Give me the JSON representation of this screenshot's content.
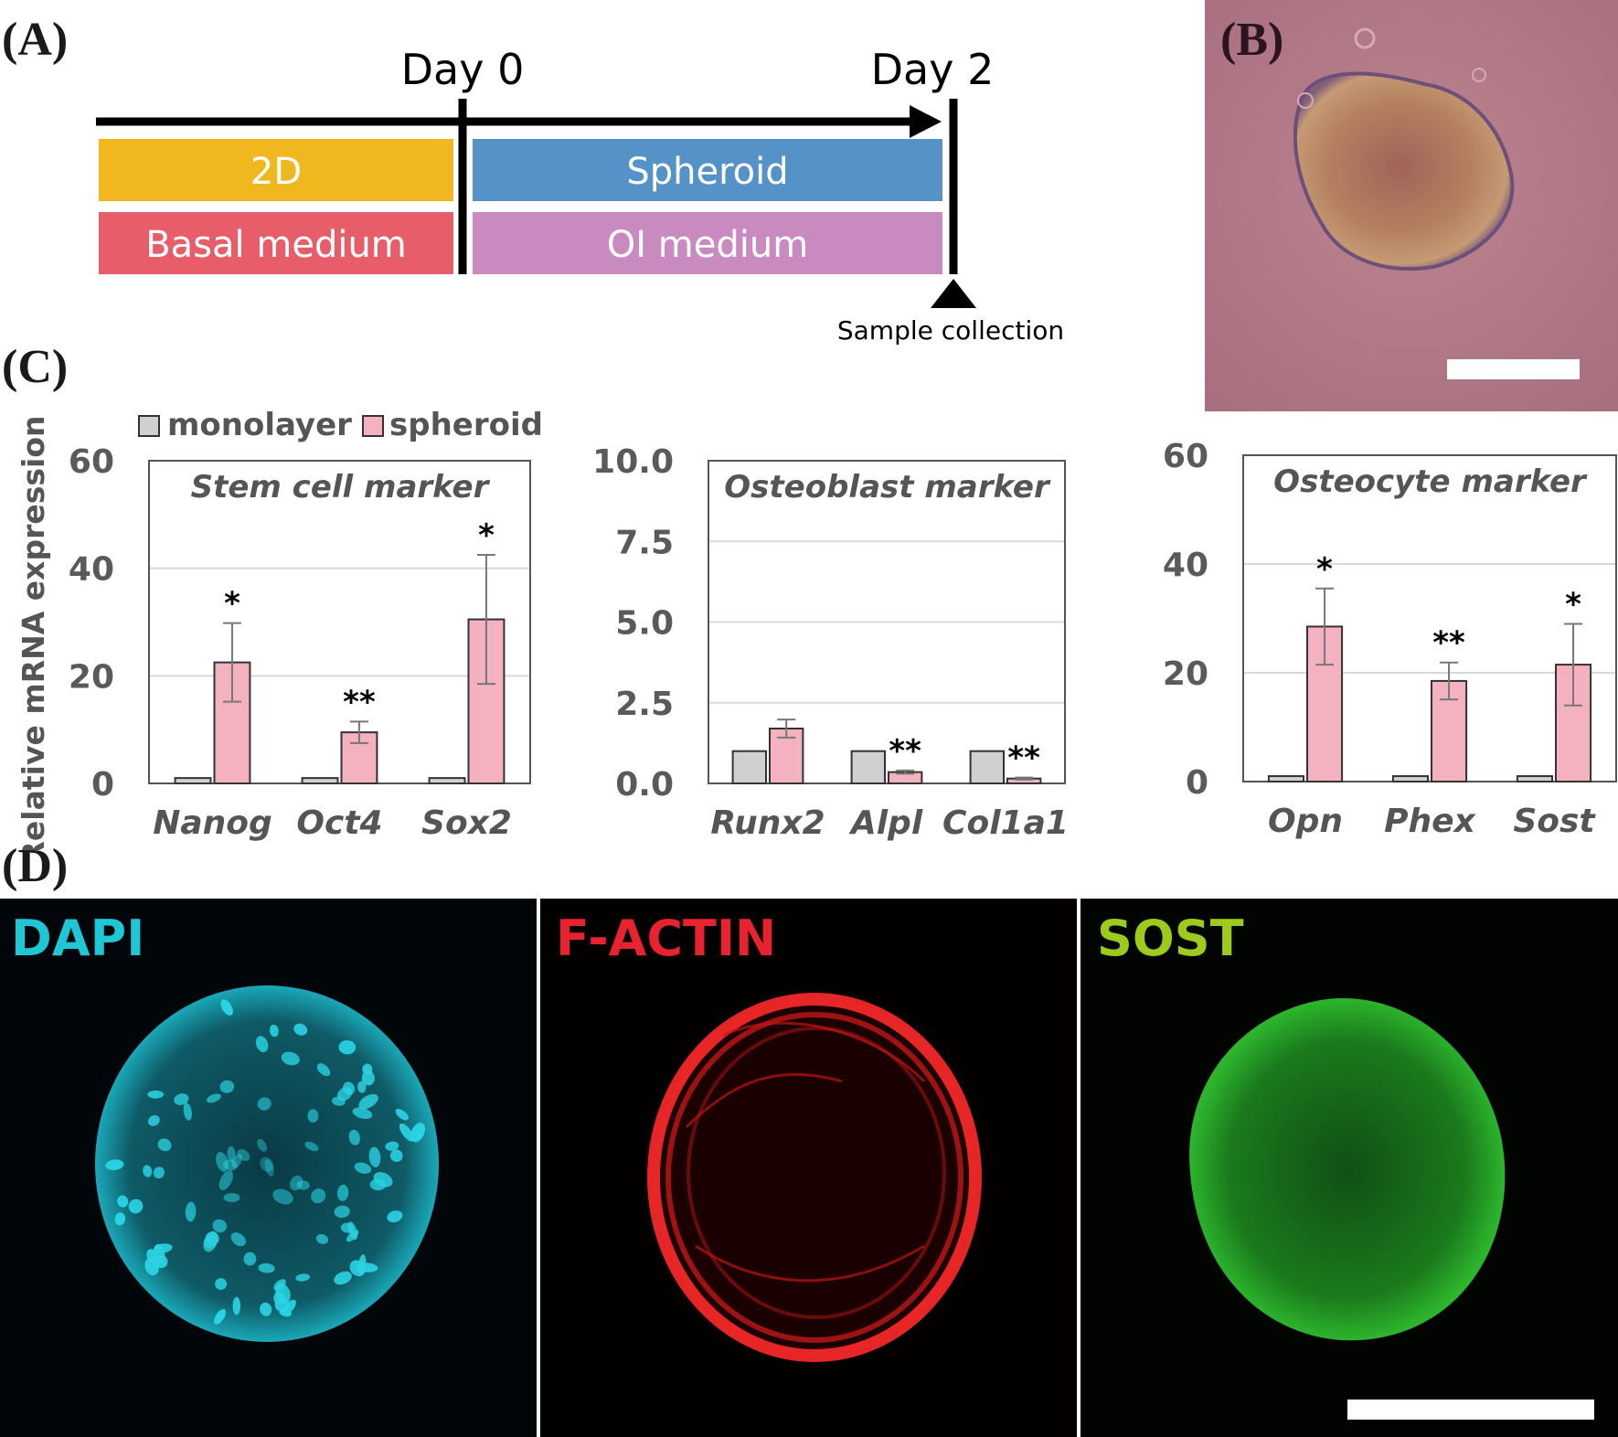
{
  "panels": {
    "A": "(A)",
    "B": "(B)",
    "C": "(C)",
    "D": "(D)"
  },
  "timeline": {
    "day0": "Day 0",
    "day2": "Day 2",
    "stage1_culture": "2D",
    "stage1_medium": "Basal medium",
    "stage2_culture": "Spheroid",
    "stage2_medium": "OI medium",
    "sample": "Sample collection",
    "colors": {
      "culture_2d": "#f0b71e",
      "spheroid": "#5592c8",
      "basal": "#e75d6a",
      "oi": "#c98ac0"
    }
  },
  "legend": {
    "monolayer": "monolayer",
    "spheroid": "spheroid"
  },
  "chart_data": [
    {
      "type": "bar",
      "title": "Stem cell marker",
      "ylabel": "Relative mRNA expression",
      "ylim": [
        0,
        60
      ],
      "yticks": [
        "0",
        "20",
        "40",
        "60"
      ],
      "categories": [
        "Nanog",
        "Oct4",
        "Sox2"
      ],
      "series": [
        {
          "name": "monolayer",
          "color": "#d0d0d0",
          "values": [
            1,
            1,
            1
          ],
          "err": [
            0,
            0,
            0
          ]
        },
        {
          "name": "spheroid",
          "color": "#f4b1c0",
          "values": [
            22.5,
            9.5,
            30.5
          ],
          "err": [
            7.3,
            2.0,
            12.0
          ]
        }
      ],
      "significance": [
        "*",
        "**",
        "*"
      ]
    },
    {
      "type": "bar",
      "title": "Osteoblast marker",
      "ylim": [
        0,
        10
      ],
      "yticks": [
        "0.0",
        "2.5",
        "5.0",
        "7.5",
        "10.0"
      ],
      "categories": [
        "Runx2",
        "Alpl",
        "Col1a1"
      ],
      "series": [
        {
          "name": "monolayer",
          "color": "#d0d0d0",
          "values": [
            1,
            1,
            1
          ],
          "err": [
            0,
            0,
            0
          ]
        },
        {
          "name": "spheroid",
          "color": "#f4b1c0",
          "values": [
            1.7,
            0.35,
            0.15
          ],
          "err": [
            0.28,
            0.05,
            0.03
          ]
        }
      ],
      "significance": [
        "",
        "**",
        "**"
      ]
    },
    {
      "type": "bar",
      "title": "Osteocyte marker",
      "ylim": [
        0,
        60
      ],
      "yticks": [
        "0",
        "20",
        "40",
        "60"
      ],
      "categories": [
        "Opn",
        "Phex",
        "Sost"
      ],
      "series": [
        {
          "name": "monolayer",
          "color": "#d0d0d0",
          "values": [
            1,
            1,
            1
          ],
          "err": [
            0,
            0,
            0
          ]
        },
        {
          "name": "spheroid",
          "color": "#f4b1c0",
          "values": [
            28.5,
            18.5,
            21.5
          ],
          "err": [
            7.0,
            3.4,
            7.5
          ]
        }
      ],
      "significance": [
        "*",
        "**",
        "*"
      ]
    }
  ],
  "stains": [
    {
      "label": "DAPI",
      "color": "#1fc6d6"
    },
    {
      "label": "F-ACTIN",
      "color": "#e8232f"
    },
    {
      "label": "SOST",
      "color": "#9ccb1e"
    }
  ]
}
